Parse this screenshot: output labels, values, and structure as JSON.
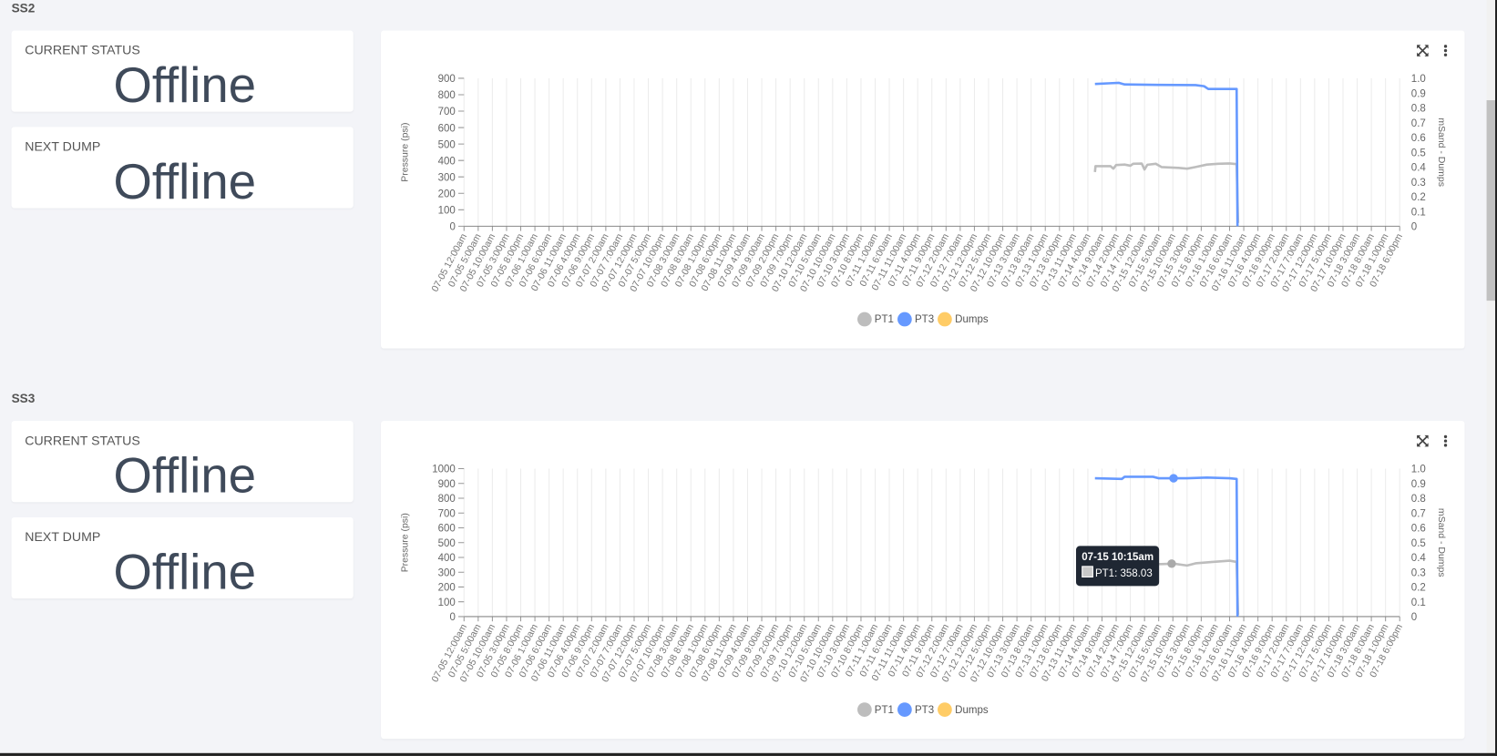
{
  "sections": [
    {
      "title": "SS2",
      "current_status_label": "CURRENT STATUS",
      "current_status_value": "Offline",
      "next_dump_label": "NEXT DUMP",
      "next_dump_value": "Offline"
    },
    {
      "title": "SS3",
      "current_status_label": "CURRENT STATUS",
      "current_status_value": "Offline",
      "next_dump_label": "NEXT DUMP",
      "next_dump_value": "Offline"
    }
  ],
  "icons": {
    "expand": "expand-icon",
    "menu": "more-vertical-icon"
  },
  "colors": {
    "PT1": "#bdbdbd",
    "PT3": "#6699ff",
    "Dumps": "#ffcc66"
  },
  "tooltip": {
    "title": "07-15 10:15am",
    "text": "PT1: 358.03"
  },
  "chart_data": [
    {
      "type": "line",
      "ylabel": "Pressure (psi)",
      "y2label": "mSand - Dumps",
      "ylim": [
        0,
        900
      ],
      "yticks": [
        0,
        100,
        200,
        300,
        400,
        500,
        600,
        700,
        800,
        900
      ],
      "y2lim": [
        0,
        1
      ],
      "y2ticks": [
        "0",
        "0.1",
        "0.2",
        "0.3",
        "0.4",
        "0.5",
        "0.6",
        "0.7",
        "0.8",
        "0.9",
        "1.0"
      ],
      "x_unit": "hours since 07-05 12:00am",
      "xlim": [
        0,
        330
      ],
      "x_tick_step_hours": 5,
      "legend": [
        "PT1",
        "PT3",
        "Dumps"
      ],
      "legend_position": "bottom",
      "series": [
        {
          "name": "PT1",
          "points": [
            [
              222.5,
              330
            ],
            [
              222.7,
              365
            ],
            [
              228,
              365
            ],
            [
              229,
              350
            ],
            [
              230,
              372
            ],
            [
              233,
              375
            ],
            [
              235,
              368
            ],
            [
              236,
              380
            ],
            [
              239,
              381
            ],
            [
              240,
              345
            ],
            [
              241,
              374
            ],
            [
              244,
              380
            ],
            [
              246,
              360
            ],
            [
              252,
              355
            ],
            [
              255,
              350
            ],
            [
              258,
              360
            ],
            [
              262,
              375
            ],
            [
              266,
              380
            ],
            [
              270,
              382
            ],
            [
              272.5,
              378
            ],
            [
              273,
              20
            ]
          ]
        },
        {
          "name": "PT3",
          "points": [
            [
              222.5,
              865
            ],
            [
              228,
              870
            ],
            [
              231,
              872
            ],
            [
              233,
              862
            ],
            [
              245,
              860
            ],
            [
              258,
              858
            ],
            [
              261,
              852
            ],
            [
              262.5,
              835
            ],
            [
              272.5,
              835
            ],
            [
              272.8,
              0
            ]
          ]
        },
        {
          "name": "Dumps",
          "points": []
        }
      ]
    },
    {
      "type": "line",
      "ylabel": "Pressure (psi)",
      "y2label": "mSand - Dumps",
      "ylim": [
        0,
        1000
      ],
      "yticks": [
        0,
        100,
        200,
        300,
        400,
        500,
        600,
        700,
        800,
        900,
        1000
      ],
      "y2lim": [
        0,
        1
      ],
      "y2ticks": [
        "0",
        "0.1",
        "0.2",
        "0.3",
        "0.4",
        "0.5",
        "0.6",
        "0.7",
        "0.8",
        "0.9",
        "1.0"
      ],
      "x_unit": "hours since 07-05 12:00am",
      "xlim": [
        0,
        330
      ],
      "x_tick_step_hours": 5,
      "legend": [
        "PT1",
        "PT3",
        "Dumps"
      ],
      "legend_position": "bottom",
      "hover": {
        "x": 250.25,
        "PT1": 358.03,
        "PT3": 935
      },
      "series": [
        {
          "name": "PT1",
          "points": [
            [
              222.5,
              360
            ],
            [
              240,
              355
            ],
            [
              246,
              355
            ],
            [
              250.25,
              358.03
            ],
            [
              255,
              345
            ],
            [
              258,
              360
            ],
            [
              264,
              370
            ],
            [
              270,
              378
            ],
            [
              272.5,
              370
            ],
            [
              273,
              10
            ]
          ]
        },
        {
          "name": "PT3",
          "points": [
            [
              222.5,
              935
            ],
            [
              232,
              930
            ],
            [
              233,
              945
            ],
            [
              243,
              945
            ],
            [
              245,
              935
            ],
            [
              255,
              935
            ],
            [
              262,
              940
            ],
            [
              270,
              935
            ],
            [
              272.5,
              930
            ],
            [
              272.8,
              0
            ]
          ]
        },
        {
          "name": "Dumps",
          "points": []
        }
      ]
    }
  ],
  "xticks": [
    "07-05 12:00am",
    "07-05 5:00am",
    "07-05 10:00am",
    "07-05 3:00pm",
    "07-05 8:00pm",
    "07-06 1:00am",
    "07-06 6:00am",
    "07-06 11:00am",
    "07-06 4:00pm",
    "07-06 9:00pm",
    "07-07 2:00am",
    "07-07 7:00am",
    "07-07 12:00pm",
    "07-07 5:00pm",
    "07-07 10:00pm",
    "07-08 3:00am",
    "07-08 8:00am",
    "07-08 1:00pm",
    "07-08 6:00pm",
    "07-08 11:00pm",
    "07-09 4:00am",
    "07-09 9:00am",
    "07-09 2:00pm",
    "07-09 7:00pm",
    "07-10 12:00am",
    "07-10 5:00am",
    "07-10 10:00am",
    "07-10 3:00pm",
    "07-10 8:00pm",
    "07-11 1:00am",
    "07-11 6:00am",
    "07-11 11:00am",
    "07-11 4:00pm",
    "07-11 9:00pm",
    "07-12 2:00am",
    "07-12 7:00am",
    "07-12 12:00pm",
    "07-12 5:00pm",
    "07-12 10:00pm",
    "07-13 3:00am",
    "07-13 8:00am",
    "07-13 1:00pm",
    "07-13 6:00pm",
    "07-13 11:00pm",
    "07-14 4:00am",
    "07-14 9:00am",
    "07-14 2:00pm",
    "07-14 7:00pm",
    "07-15 12:00am",
    "07-15 5:00am",
    "07-15 10:00am",
    "07-15 3:00pm",
    "07-15 8:00pm",
    "07-16 1:00am",
    "07-16 6:00am",
    "07-16 11:00am",
    "07-16 4:00pm",
    "07-16 9:00pm",
    "07-17 2:00am",
    "07-17 7:00am",
    "07-17 12:00pm",
    "07-17 5:00pm",
    "07-17 10:00pm",
    "07-18 3:00am",
    "07-18 8:00am",
    "07-18 1:00pm",
    "07-18 6:00pm"
  ]
}
